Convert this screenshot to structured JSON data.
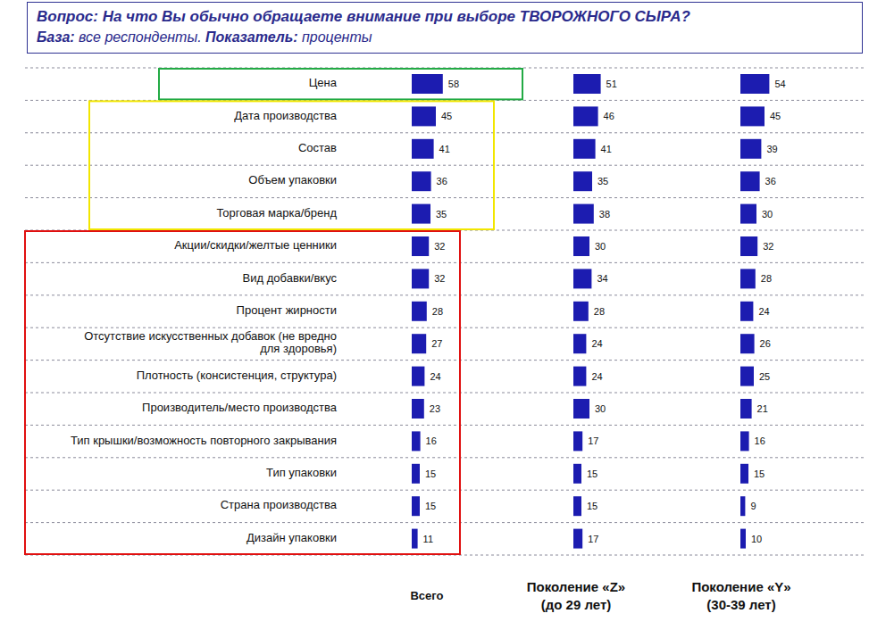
{
  "chart_data": {
    "type": "bar",
    "orientation": "horizontal",
    "title": "Вопрос: На что Вы обычно обращаете внимание при выборе ТВОРОЖНОГО СЫРА?",
    "subtitle": "База: все респонденты. Показатель: проценты",
    "categories": [
      "Цена",
      "Дата производства",
      "Состав",
      "Объем упаковки",
      "Торговая марка/бренд",
      "Акции/скидки/желтые ценники",
      "Вид добавки/вкус",
      "Процент жирности",
      "Отсутствие искусственных добавок (не вредно для здоровья)",
      "Плотность (консистенция, структура)",
      "Производитель/место производства",
      "Тип крышки/возможность повторного закрывания",
      "Тип упаковки",
      "Страна производства",
      "Дизайн упаковки"
    ],
    "series": [
      {
        "name": "Всего",
        "color": "#1c1cb0",
        "values": [
          58,
          45,
          41,
          36,
          35,
          32,
          32,
          28,
          27,
          24,
          23,
          16,
          15,
          15,
          11
        ]
      },
      {
        "name": "Поколение «Z» (до 29 лет)",
        "color": "#1c1cb0",
        "values": [
          51,
          46,
          41,
          35,
          38,
          30,
          34,
          28,
          24,
          24,
          30,
          17,
          15,
          15,
          17
        ]
      },
      {
        "name": "Поколение «Y» (30-39 лет)",
        "color": "#1c1cb0",
        "values": [
          54,
          45,
          39,
          36,
          30,
          32,
          28,
          24,
          26,
          25,
          21,
          16,
          15,
          9,
          10
        ]
      }
    ],
    "xlim": [
      0,
      100
    ],
    "tick_labels": "y",
    "data_labels": true,
    "grid": true,
    "legend": "bottom"
  }
}
